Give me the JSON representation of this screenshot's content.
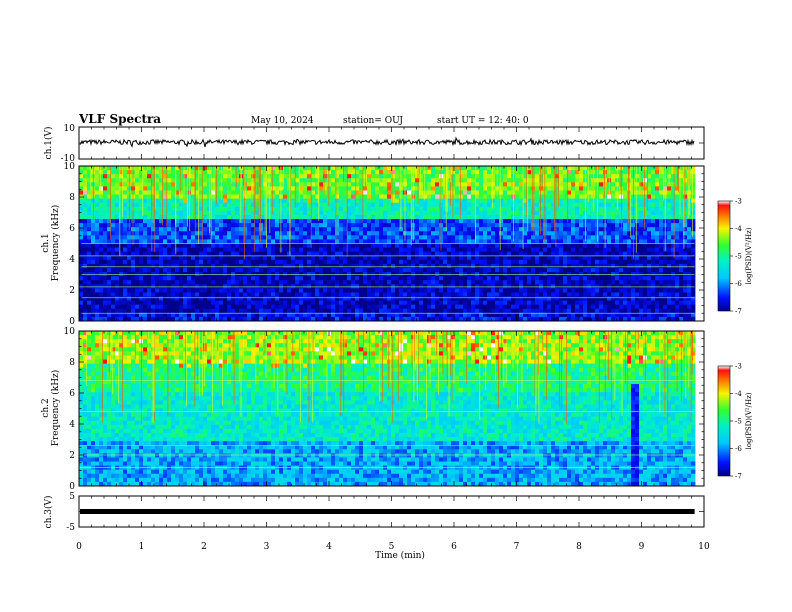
{
  "header": {
    "title": "VLF Spectra",
    "date": "May 10, 2024",
    "station": "station= OUJ",
    "start": "start  UT =   12: 40: 0"
  },
  "chart_data": [
    {
      "type": "line",
      "panel": "ch1-waveform",
      "ylabel": "ch.1(V)",
      "ylim": [
        -10,
        10
      ],
      "yticks": [
        "10",
        "-10"
      ],
      "xlim": [
        0,
        10
      ],
      "baseline": 0.5,
      "amplitude_range": [
        -1.5,
        1.5
      ],
      "color": "#000000"
    },
    {
      "type": "heatmap",
      "panel": "ch1-spectrogram",
      "ylabel": "ch.1\nFrequency  (kHz)",
      "ylim": [
        0,
        10
      ],
      "yticks": [
        "0",
        "2",
        "4",
        "6",
        "8",
        "10"
      ],
      "xlim": [
        0,
        10
      ],
      "data_end_min": 9.85,
      "colorbar": {
        "label": "log(PSD)(V²/Hz)",
        "range": [
          -7,
          -3
        ],
        "ticks": [
          "-3",
          "-4",
          "-5",
          "-6",
          "-7"
        ]
      },
      "bands_psd": [
        {
          "f": [
            0,
            0.6
          ],
          "psd": -6.6
        },
        {
          "f": [
            0.6,
            5.0
          ],
          "psd": -6.8
        },
        {
          "f": [
            5.0,
            6.5
          ],
          "psd": -6.3
        },
        {
          "f": [
            6.5,
            8.0
          ],
          "psd": -5.2
        },
        {
          "f": [
            8.0,
            10
          ],
          "psd": -4.5
        }
      ],
      "hlines_khz": [
        0.5,
        1.5,
        2.2,
        3.0,
        3.5,
        4.2,
        5.0
      ]
    },
    {
      "type": "heatmap",
      "panel": "ch2-spectrogram",
      "ylabel": "ch.2\nFrequency  (kHz)",
      "ylim": [
        0,
        10
      ],
      "yticks": [
        "0",
        "2",
        "4",
        "6",
        "8",
        "10"
      ],
      "xlim": [
        0,
        10
      ],
      "data_end_min": 9.85,
      "colorbar": {
        "label": "log(PSD)(V²/Hz)",
        "range": [
          -7,
          -3
        ],
        "ticks": [
          "-3",
          "-4",
          "-5",
          "-6",
          "-7"
        ]
      },
      "bands_psd": [
        {
          "f": [
            0,
            3
          ],
          "psd": -5.9
        },
        {
          "f": [
            3,
            6
          ],
          "psd": -5.3
        },
        {
          "f": [
            6,
            8
          ],
          "psd": -4.9
        },
        {
          "f": [
            8,
            10
          ],
          "psd": -4.3
        }
      ],
      "hlines_khz": [
        1.2,
        2.0,
        2.6,
        4.8,
        6.8
      ],
      "dark_strip_min": [
        8.8,
        8.9
      ]
    },
    {
      "type": "line",
      "panel": "ch3-waveform",
      "ylabel": "ch.3(V)",
      "ylim": [
        -5,
        5
      ],
      "yticks": [
        "5",
        "0",
        "-5"
      ],
      "xlim": [
        0,
        10
      ],
      "xlabel": "Time  (min)",
      "xticks": [
        "0",
        "1",
        "2",
        "3",
        "4",
        "5",
        "6",
        "7",
        "8",
        "9",
        "10"
      ],
      "baseline": 0,
      "color": "#000000"
    }
  ]
}
